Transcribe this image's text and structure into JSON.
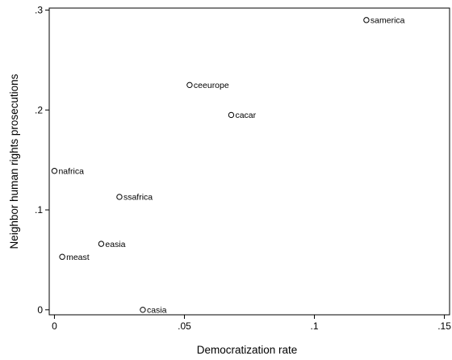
{
  "chart_data": {
    "type": "scatter",
    "title": "",
    "xlabel": "Democratization rate",
    "ylabel": "Neighbor human rights prosecutions",
    "xlim": [
      -0.002,
      0.152
    ],
    "ylim": [
      -0.005,
      0.302
    ],
    "xticks": [
      {
        "value": 0,
        "label": "0"
      },
      {
        "value": 0.05,
        "label": ".05"
      },
      {
        "value": 0.1,
        "label": ".1"
      },
      {
        "value": 0.15,
        "label": ".15"
      }
    ],
    "yticks": [
      {
        "value": 0,
        "label": "0"
      },
      {
        "value": 0.1,
        "label": ".1"
      },
      {
        "value": 0.2,
        "label": ".2"
      },
      {
        "value": 0.3,
        "label": ".3"
      }
    ],
    "grid": false,
    "points": [
      {
        "label": "samerica",
        "x": 0.12,
        "y": 0.29
      },
      {
        "label": "ceeurope",
        "x": 0.052,
        "y": 0.225
      },
      {
        "label": "cacar",
        "x": 0.068,
        "y": 0.195
      },
      {
        "label": "nafrica",
        "x": 0.0,
        "y": 0.139
      },
      {
        "label": "ssafrica",
        "x": 0.025,
        "y": 0.113
      },
      {
        "label": "easia",
        "x": 0.018,
        "y": 0.066
      },
      {
        "label": "meast",
        "x": 0.003,
        "y": 0.053
      },
      {
        "label": "casia",
        "x": 0.034,
        "y": 0.0
      }
    ],
    "marker_color": "#000000"
  }
}
